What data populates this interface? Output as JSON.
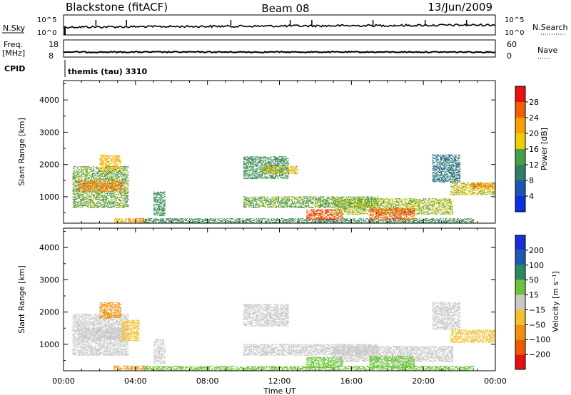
{
  "header": {
    "site": "Blackstone (fitACF)",
    "beam": "Beam 08",
    "date": "13/Jun/2009"
  },
  "strip": {
    "nsky_label": "N.Sky",
    "nsearch_label": "N.Search",
    "nsky_ticks": [
      "10^5",
      "10^0"
    ],
    "freq_label_1": "Freq.",
    "freq_label_2": "[MHz]",
    "freq_ticks": [
      "18",
      "8"
    ],
    "nave_label": "Nave",
    "nave_ticks": [
      "60",
      "0"
    ],
    "cpid_label": "CPID",
    "cpid_text": "themis (tau) 3310"
  },
  "colors": {
    "power": [
      "#0a2fe0",
      "#1d55b4",
      "#2f7e66",
      "#46a046",
      "#f0cc00",
      "#f79f00",
      "#f06000",
      "#e81010"
    ],
    "velocity": [
      "#e61010",
      "#ee5a00",
      "#f2920c",
      "#f2c030",
      "#c8c8c8",
      "#6cc43a",
      "#2c8a62",
      "#1d5ab0",
      "#1a2ed8"
    ]
  },
  "chart_data": [
    {
      "type": "heatmap",
      "name": "Power",
      "ylabel": "Slant Range [km]",
      "ylim": [
        180,
        4600
      ],
      "y_ticks": [
        1000,
        2000,
        3000,
        4000
      ],
      "x_unit": "hours UT",
      "xlim": [
        0,
        24
      ],
      "colorbar_label": "Power [dB]",
      "colorbar_ticks": [
        "4",
        "8",
        "12",
        "16",
        "20",
        "24",
        "28"
      ],
      "colorbar_range": [
        0,
        32
      ],
      "regions": [
        {
          "t0": 0.5,
          "t1": 3.6,
          "r0": 650,
          "r1": 1950,
          "value": 14
        },
        {
          "t0": 0.8,
          "t1": 3.3,
          "r0": 1150,
          "r1": 1500,
          "value": 24
        },
        {
          "t0": 2.0,
          "t1": 3.2,
          "r0": 1800,
          "r1": 2300,
          "value": 20
        },
        {
          "t0": 2.8,
          "t1": 4.6,
          "r0": 200,
          "r1": 340,
          "value": 22
        },
        {
          "t0": 4.4,
          "t1": 22.8,
          "r0": 190,
          "r1": 330,
          "value": 12
        },
        {
          "t0": 5.0,
          "t1": 5.6,
          "r0": 400,
          "r1": 1150,
          "value": 12
        },
        {
          "t0": 10.0,
          "t1": 17.5,
          "r0": 650,
          "r1": 1000,
          "value": 14
        },
        {
          "t0": 10.0,
          "t1": 12.5,
          "r0": 1550,
          "r1": 2250,
          "value": 12
        },
        {
          "t0": 11.0,
          "t1": 13.0,
          "r0": 1700,
          "r1": 1950,
          "value": 18
        },
        {
          "t0": 13.5,
          "t1": 15.5,
          "r0": 270,
          "r1": 600,
          "value": 27
        },
        {
          "t0": 15.0,
          "t1": 21.6,
          "r0": 450,
          "r1": 950,
          "value": 16
        },
        {
          "t0": 17.0,
          "t1": 19.5,
          "r0": 270,
          "r1": 650,
          "value": 26
        },
        {
          "t0": 20.5,
          "t1": 22.0,
          "r0": 1450,
          "r1": 2300,
          "value": 9
        },
        {
          "t0": 21.5,
          "t1": 24.0,
          "r0": 1050,
          "r1": 1450,
          "value": 18
        },
        {
          "t0": 22.6,
          "t1": 24.0,
          "r0": 1250,
          "r1": 1400,
          "value": 24
        }
      ]
    },
    {
      "type": "heatmap",
      "name": "Velocity",
      "ylabel": "Slant Range [km]",
      "ylim": [
        180,
        4600
      ],
      "y_ticks": [
        1000,
        2000,
        3000,
        4000
      ],
      "x_unit": "hours UT",
      "xlim": [
        0,
        24
      ],
      "xlabel": "Time UT",
      "x_ticks": [
        "00:00",
        "04:00",
        "08:00",
        "12:00",
        "16:00",
        "20:00",
        "00:00"
      ],
      "colorbar_label": "Velocity [m s⁻¹]",
      "colorbar_ticks": [
        "-200",
        "-100",
        "-50",
        "-15",
        "15",
        "50",
        "100",
        "200"
      ],
      "regions": [
        {
          "t0": 0.5,
          "t1": 3.6,
          "r0": 650,
          "r1": 1950,
          "value": 0
        },
        {
          "t0": 0.8,
          "t1": 3.3,
          "r0": 1150,
          "r1": 1500,
          "value": 0
        },
        {
          "t0": 2.0,
          "t1": 3.2,
          "r0": 1800,
          "r1": 2300,
          "value": -55
        },
        {
          "t0": 2.8,
          "t1": 4.6,
          "r0": 200,
          "r1": 340,
          "value": -60
        },
        {
          "t0": 3.2,
          "t1": 4.2,
          "r0": 1100,
          "r1": 1750,
          "value": -40
        },
        {
          "t0": 4.4,
          "t1": 22.8,
          "r0": 190,
          "r1": 330,
          "value": 25
        },
        {
          "t0": 5.0,
          "t1": 5.6,
          "r0": 400,
          "r1": 1150,
          "value": 0
        },
        {
          "t0": 10.0,
          "t1": 17.5,
          "r0": 650,
          "r1": 1000,
          "value": 0
        },
        {
          "t0": 10.0,
          "t1": 12.5,
          "r0": 1550,
          "r1": 2250,
          "value": 0
        },
        {
          "t0": 13.5,
          "t1": 15.5,
          "r0": 270,
          "r1": 600,
          "value": 20
        },
        {
          "t0": 15.0,
          "t1": 21.6,
          "r0": 450,
          "r1": 950,
          "value": 0
        },
        {
          "t0": 17.0,
          "t1": 19.5,
          "r0": 270,
          "r1": 650,
          "value": 20
        },
        {
          "t0": 20.5,
          "t1": 22.0,
          "r0": 1450,
          "r1": 2300,
          "value": 0
        },
        {
          "t0": 21.5,
          "t1": 24.0,
          "r0": 1050,
          "r1": 1450,
          "value": -20
        }
      ]
    }
  ]
}
